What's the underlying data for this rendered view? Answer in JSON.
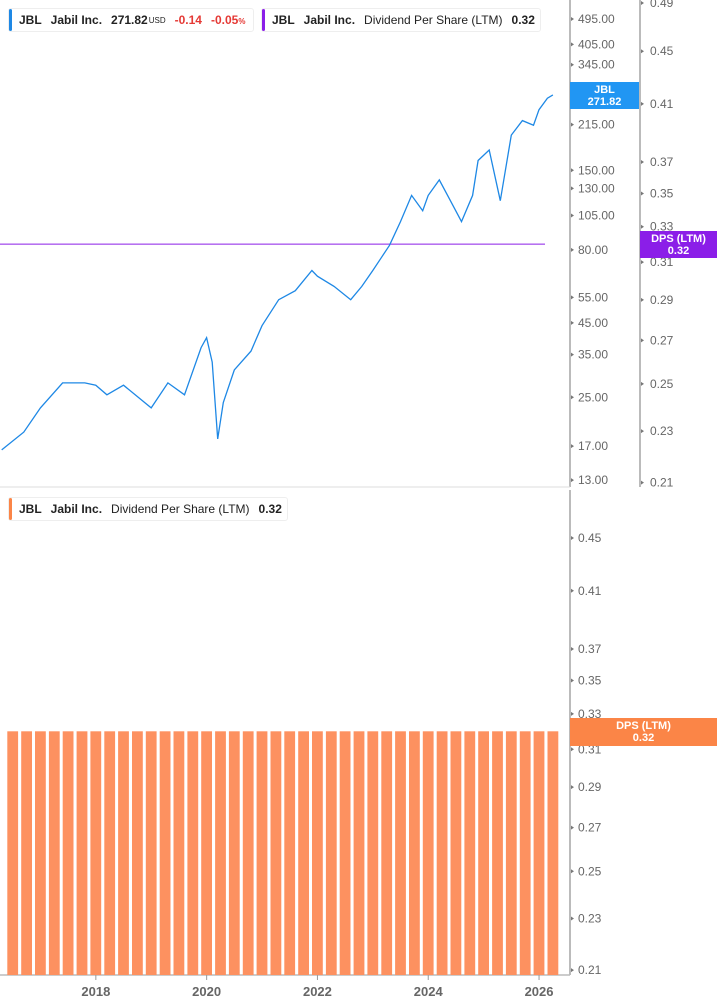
{
  "legends": {
    "price": {
      "ticker": "JBL",
      "name": "Jabil Inc.",
      "price": "271.82",
      "currency": "USD",
      "change": "-0.14",
      "change_pct": "-0.05",
      "pct_sign": "%"
    },
    "dps_top": {
      "ticker": "JBL",
      "name": "Jabil Inc.",
      "metric": "Dividend Per Share (LTM)",
      "value": "0.32"
    },
    "dps_bottom": {
      "ticker": "JBL",
      "name": "Jabil Inc.",
      "metric": "Dividend Per Share (LTM)",
      "value": "0.32"
    }
  },
  "tags": {
    "price": {
      "line1": "JBL",
      "line2": "271.82"
    },
    "dps_top": {
      "line1": "DPS (LTM)",
      "line2": "0.32"
    },
    "dps_bottom": {
      "line1": "DPS (LTM)",
      "line2": "0.32"
    }
  },
  "colors": {
    "price": "#1e88e5",
    "dps_line": "#8b1ee8",
    "bars": "#fd9160",
    "bar_tag": "#fb8547",
    "neg": "#e53935"
  },
  "chart_data": [
    {
      "type": "line",
      "scale": "log",
      "series": [
        {
          "name": "JBL",
          "points": [
            [
              2016.3,
              16.5
            ],
            [
              2016.7,
              19
            ],
            [
              2017.0,
              23
            ],
            [
              2017.4,
              28
            ],
            [
              2017.8,
              28
            ],
            [
              2018.0,
              27.5
            ],
            [
              2018.2,
              25.5
            ],
            [
              2018.5,
              27.5
            ],
            [
              2019.0,
              23
            ],
            [
              2019.3,
              28
            ],
            [
              2019.6,
              25.5
            ],
            [
              2019.9,
              37
            ],
            [
              2020.0,
              40
            ],
            [
              2020.1,
              33
            ],
            [
              2020.2,
              18
            ],
            [
              2020.3,
              24
            ],
            [
              2020.5,
              31
            ],
            [
              2020.8,
              36
            ],
            [
              2021.0,
              44
            ],
            [
              2021.3,
              54
            ],
            [
              2021.6,
              58
            ],
            [
              2021.9,
              68
            ],
            [
              2022.0,
              65
            ],
            [
              2022.3,
              60
            ],
            [
              2022.6,
              54
            ],
            [
              2022.8,
              60
            ],
            [
              2023.0,
              68
            ],
            [
              2023.3,
              83
            ],
            [
              2023.5,
              100
            ],
            [
              2023.7,
              123
            ],
            [
              2023.9,
              109
            ],
            [
              2024.0,
              123
            ],
            [
              2024.2,
              139
            ],
            [
              2024.4,
              118
            ],
            [
              2024.6,
              100
            ],
            [
              2024.8,
              123
            ],
            [
              2024.9,
              162
            ],
            [
              2025.1,
              176
            ],
            [
              2025.3,
              118
            ],
            [
              2025.5,
              198
            ],
            [
              2025.7,
              222
            ],
            [
              2025.9,
              214
            ],
            [
              2026.0,
              242
            ],
            [
              2026.15,
              265
            ],
            [
              2026.25,
              271.82
            ]
          ]
        },
        {
          "name": "DPS (LTM)",
          "constant": 0.32,
          "axis": "right"
        }
      ],
      "y_ticks": [
        "495.00",
        "405.00",
        "345.00",
        "280.00",
        "215.00",
        "150.00",
        "130.00",
        "105.00",
        "80.00",
        "55.00",
        "45.00",
        "35.00",
        "25.00",
        "17.00",
        "13.00"
      ],
      "y2_ticks": [
        "0.49",
        "0.45",
        "0.41",
        "0.37",
        "0.35",
        "0.33",
        "0.31",
        "0.29",
        "0.27",
        "0.25",
        "0.23",
        "0.21"
      ]
    },
    {
      "type": "bar",
      "scale": "log",
      "bar_count": 40,
      "value": 0.32,
      "x_range": [
        2016.5,
        2026.25
      ],
      "y_ticks": [
        "0.45",
        "0.41",
        "0.37",
        "0.35",
        "0.33",
        "0.31",
        "0.29",
        "0.27",
        "0.25",
        "0.23",
        "0.21"
      ],
      "x_ticks": [
        "2018",
        "2020",
        "2022",
        "2024",
        "2026"
      ]
    }
  ]
}
